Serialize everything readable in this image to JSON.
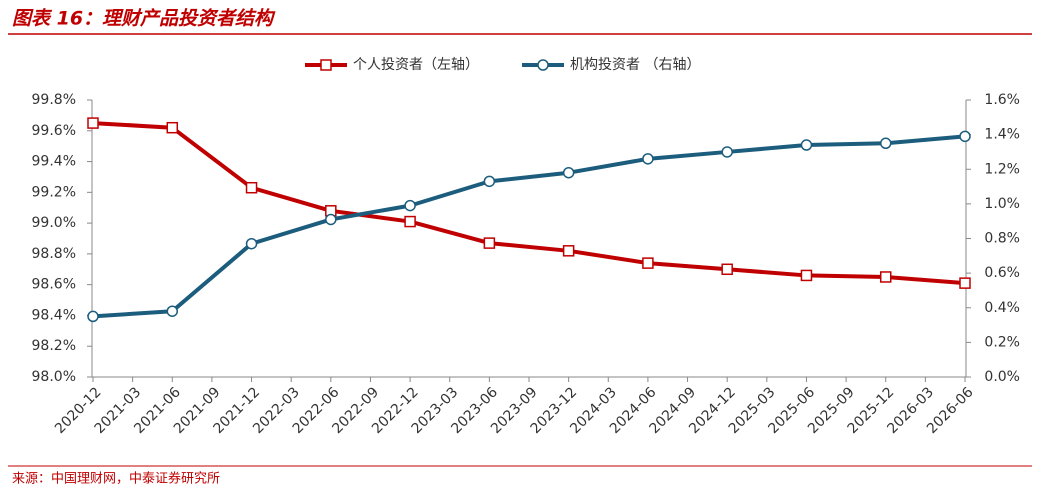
{
  "header": {
    "title": "图表 16：理财产品投资者结构"
  },
  "footer": {
    "source": "来源：中国理财网，中泰证券研究所"
  },
  "chart_data": {
    "type": "line",
    "x": [
      "2020-12",
      "2021-06",
      "2021-12",
      "2022-06",
      "2022-12",
      "2023-06",
      "2023-12",
      "2024-06",
      "2024-12",
      "2025-06",
      "2025-12",
      "2026-06"
    ],
    "xlim": [
      "2020-12",
      "2026-06"
    ],
    "xticks": [
      "2020-12",
      "2021-03",
      "2021-06",
      "2021-09",
      "2021-12",
      "2022-03",
      "2022-06",
      "2022-09",
      "2022-12",
      "2023-03",
      "2023-06",
      "2023-09",
      "2023-12",
      "2024-03",
      "2024-06",
      "2024-09",
      "2024-12",
      "2025-03",
      "2025-06",
      "2025-09",
      "2025-12",
      "2026-03",
      "2026-06"
    ],
    "ylim": [
      98.0,
      99.8
    ],
    "yticks": [
      {
        "value": 98.0,
        "label": "98.0%"
      },
      {
        "value": 98.2,
        "label": "98.2%"
      },
      {
        "value": 98.4,
        "label": "98.4%"
      },
      {
        "value": 98.6,
        "label": "98.6%"
      },
      {
        "value": 98.8,
        "label": "98.8%"
      },
      {
        "value": 99.0,
        "label": "99.0%"
      },
      {
        "value": 99.2,
        "label": "99.2%"
      },
      {
        "value": 99.4,
        "label": "99.4%"
      },
      {
        "value": 99.6,
        "label": "99.6%"
      },
      {
        "value": 99.8,
        "label": "99.8%"
      }
    ],
    "y2lim": [
      0.0,
      1.6
    ],
    "y2ticks": [
      {
        "value": 0.0,
        "label": "0.0%"
      },
      {
        "value": 0.2,
        "label": "0.2%"
      },
      {
        "value": 0.4,
        "label": "0.4%"
      },
      {
        "value": 0.6,
        "label": "0.6%"
      },
      {
        "value": 0.8,
        "label": "0.8%"
      },
      {
        "value": 1.0,
        "label": "1.0%"
      },
      {
        "value": 1.2,
        "label": "1.2%"
      },
      {
        "value": 1.4,
        "label": "1.4%"
      },
      {
        "value": 1.6,
        "label": "1.6%"
      }
    ],
    "legend": "top",
    "series": [
      {
        "name": "个人投资者（左轴）",
        "color": "#c00000",
        "marker": "square",
        "axis": "y",
        "values": [
          99.65,
          99.62,
          99.23,
          99.08,
          99.01,
          98.87,
          98.82,
          98.74,
          98.7,
          98.66,
          98.65,
          98.61
        ]
      },
      {
        "name": "机构投资者 （右轴）",
        "color": "#1c5d7e",
        "marker": "circle",
        "axis": "y2",
        "values": [
          0.35,
          0.38,
          0.77,
          0.91,
          0.99,
          1.13,
          1.18,
          1.26,
          1.3,
          1.34,
          1.35,
          1.39
        ]
      }
    ]
  }
}
